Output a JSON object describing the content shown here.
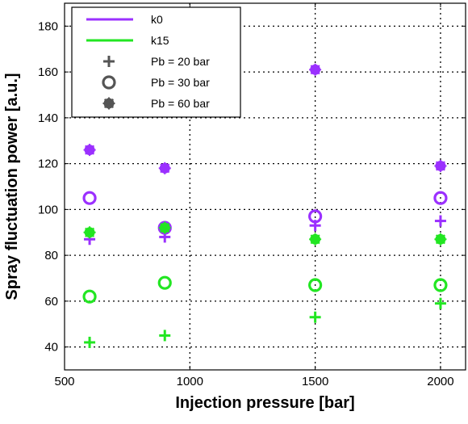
{
  "chart_data": {
    "type": "scatter",
    "xlabel": "Injection pressure [bar]",
    "ylabel": "Spray fluctuation power [a.u.]",
    "xlim": [
      500,
      2100
    ],
    "ylim": [
      30,
      190
    ],
    "xticks": [
      500,
      1000,
      1500,
      2000
    ],
    "yticks": [
      40,
      60,
      80,
      100,
      120,
      140,
      160,
      180
    ],
    "grid": true,
    "grid_style": "dotted",
    "legend_position": "top-left",
    "colors": {
      "k0": "#9b30ff",
      "k15": "#22e622"
    },
    "legend": [
      {
        "label": "k0",
        "kind": "line",
        "color_key": "k0"
      },
      {
        "label": "k15",
        "kind": "line",
        "color_key": "k15"
      },
      {
        "label": "Pb = 20 bar",
        "kind": "marker",
        "marker": "plus"
      },
      {
        "label": "Pb = 30 bar",
        "kind": "marker",
        "marker": "circle"
      },
      {
        "label": "Pb = 60 bar",
        "kind": "marker",
        "marker": "asterisk"
      }
    ],
    "series": [
      {
        "group": "k0",
        "pb": "20 bar",
        "marker": "plus",
        "x": [
          600,
          900,
          1500,
          2000
        ],
        "y": [
          87,
          88,
          93,
          95
        ]
      },
      {
        "group": "k0",
        "pb": "30 bar",
        "marker": "circle",
        "x": [
          600,
          900,
          1500,
          2000
        ],
        "y": [
          105,
          92,
          97,
          105
        ]
      },
      {
        "group": "k0",
        "pb": "60 bar",
        "marker": "asterisk",
        "x": [
          600,
          900,
          1500,
          2000
        ],
        "y": [
          126,
          118,
          161,
          119
        ]
      },
      {
        "group": "k15",
        "pb": "20 bar",
        "marker": "plus",
        "x": [
          600,
          900,
          1500,
          2000
        ],
        "y": [
          42,
          45,
          53,
          59
        ]
      },
      {
        "group": "k15",
        "pb": "30 bar",
        "marker": "circle",
        "x": [
          600,
          900,
          1500,
          2000
        ],
        "y": [
          62,
          68,
          67,
          67
        ]
      },
      {
        "group": "k15",
        "pb": "60 bar",
        "marker": "asterisk",
        "x": [
          600,
          900,
          1500,
          2000
        ],
        "y": [
          90,
          92,
          87,
          87
        ]
      }
    ]
  }
}
